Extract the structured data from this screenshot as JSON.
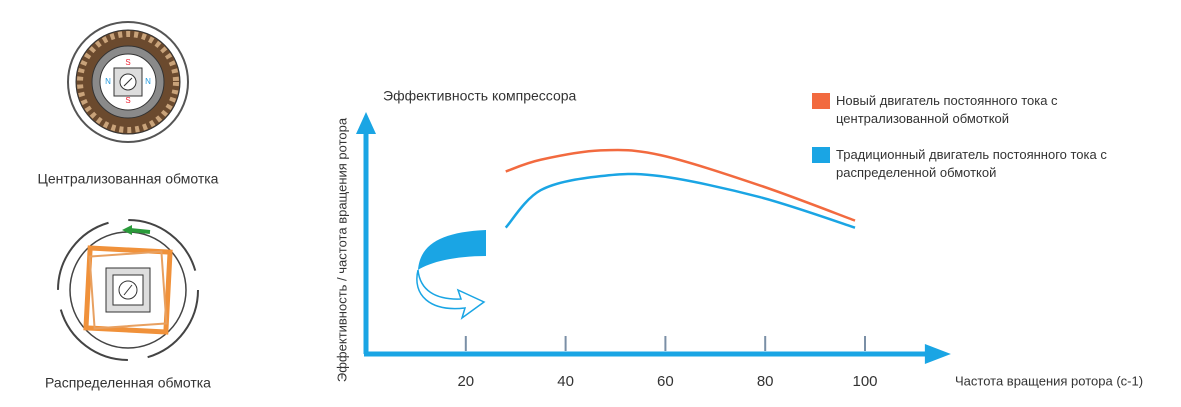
{
  "chart_data": {
    "type": "line",
    "subtitle": "Эффективность компрессора",
    "y_label": "Эффективность / частота вращения ротора",
    "x_label": "Частота вращения ротора (с-1)",
    "x": [
      28,
      35,
      47,
      59,
      79,
      98
    ],
    "series": [
      {
        "name": "Новый двигатель постоянного тока с централизованной обмоткой",
        "color": "#f26a3f",
        "values": [
          78,
          83,
          87,
          85,
          72,
          57
        ]
      },
      {
        "name": "Традиционный двигатель постоянного тока с распределенной обмоткой",
        "color": "#1aa5e4",
        "values": [
          54,
          70,
          76,
          76,
          67,
          54
        ]
      }
    ],
    "xlim": [
      0,
      112
    ],
    "ylim": [
      0,
      100
    ],
    "xticks": [
      20,
      40,
      60,
      80,
      100
    ],
    "axis_color": "#1aa5e4"
  },
  "illustrations": {
    "top_label": "Централизованная обмотка",
    "bottom_label": "Распределенная обмотка"
  }
}
